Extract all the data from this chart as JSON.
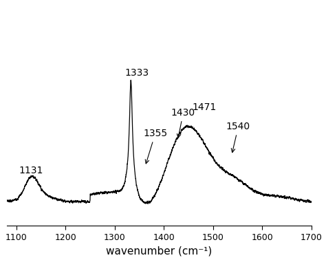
{
  "title": "",
  "xlabel": "wavenumber (cm⁻¹)",
  "ylabel": "",
  "xlim": [
    1080,
    1700
  ],
  "ylim": [
    -0.05,
    1.55
  ],
  "xticks": [
    1100,
    1200,
    1300,
    1400,
    1500,
    1600,
    1700
  ],
  "line_color": "#000000",
  "background_color": "#ffffff",
  "fontsize_annotation": 10,
  "fontsize_xlabel": 11
}
